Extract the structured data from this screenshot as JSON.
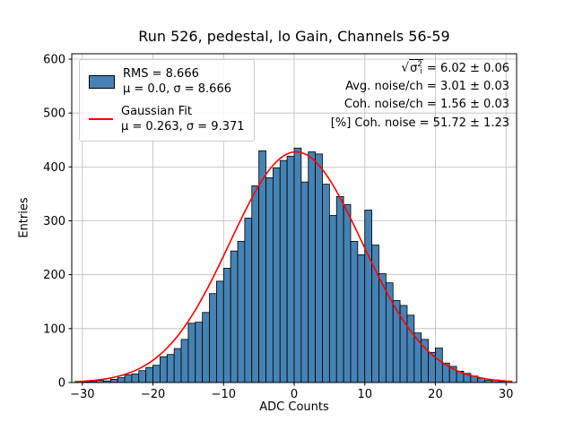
{
  "chart_data": {
    "type": "bar",
    "subtype": "histogram",
    "title": "Run 526, pedestal, lo Gain, Channels 56-59",
    "xlabel": "ADC Counts",
    "ylabel": "Entries",
    "xlim": [
      -31.5,
      31.5
    ],
    "ylim": [
      0,
      610
    ],
    "xticks": [
      -30,
      -20,
      -10,
      0,
      10,
      20,
      30
    ],
    "yticks": [
      0,
      100,
      200,
      300,
      400,
      500,
      600
    ],
    "grid": true,
    "grid_color": "#bbbbbb",
    "bar_color": "#4682b4",
    "bar_edge_color": "#000000",
    "fit_color": "#ff0000",
    "bins": {
      "start": -30,
      "width": 1,
      "counts": [
        1,
        2,
        4,
        3,
        6,
        9,
        14,
        16,
        22,
        28,
        32,
        48,
        52,
        63,
        80,
        110,
        112,
        130,
        165,
        188,
        212,
        244,
        262,
        305,
        365,
        430,
        380,
        398,
        412,
        420,
        435,
        372,
        428,
        424,
        368,
        310,
        345,
        330,
        262,
        237,
        320,
        255,
        202,
        185,
        152,
        143,
        125,
        92,
        80,
        56,
        64,
        36,
        30,
        21,
        17,
        12,
        8,
        4,
        5,
        2
      ]
    },
    "gaussian_fit": {
      "mu": 0.263,
      "sigma": 9.371,
      "amplitude": 428
    },
    "legend": [
      {
        "marker": "patch",
        "lines": [
          "RMS = 8.666",
          "μ = 0.0, σ = 8.666"
        ]
      },
      {
        "marker": "line",
        "lines": [
          "Gaussian Fit",
          "μ = 0.263, σ = 9.371"
        ]
      }
    ],
    "annotations": [
      "√σᵢ² = 6.02 ± 0.06",
      "Avg. noise/ch = 3.01 ± 0.03",
      "Coh. noise/ch = 1.56 ± 0.03",
      "[%] Coh. noise = 51.72 ± 1.23"
    ],
    "sqrt_annotation_parts": {
      "sqrt_sign": "√",
      "base": "σ",
      "sup": "2",
      "sub": "i",
      "rest": " = 6.02 ± 0.06"
    }
  }
}
